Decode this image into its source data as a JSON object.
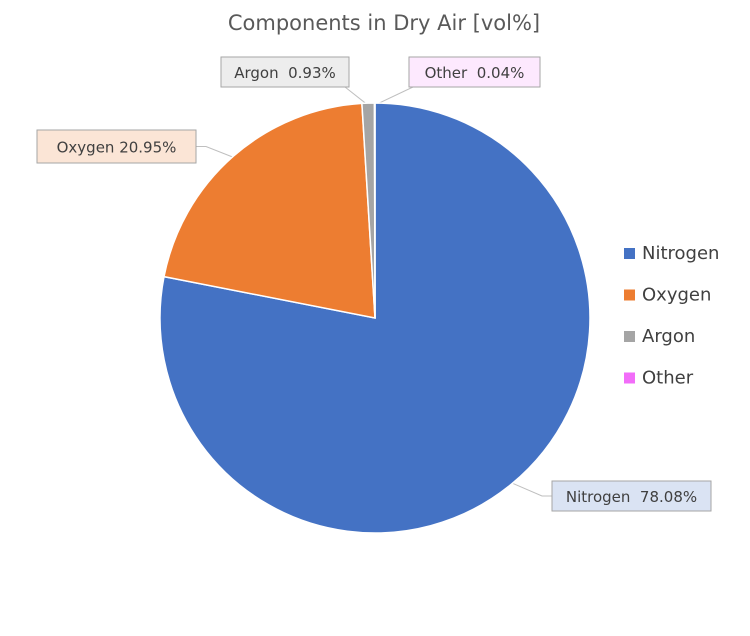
{
  "chart_data": {
    "type": "pie",
    "title": "Components in Dry Air [vol%]",
    "categories": [
      "Nitrogen",
      "Oxygen",
      "Argon",
      "Other"
    ],
    "values": [
      78.08,
      20.95,
      0.93,
      0.04
    ],
    "unit": "%",
    "data_labels": [
      "Nitrogen  78.08%",
      "Oxygen 20.95%",
      "Argon  0.93%",
      "Other  0.04%"
    ],
    "colors": [
      "#4472C4",
      "#ED7D31",
      "#A5A5A5",
      "#F26DF9"
    ],
    "label_fills": [
      "#DAE3F3",
      "#FBE5D6",
      "#EDEDED",
      "#FDE9FE"
    ],
    "legend": {
      "position": "right",
      "entries": [
        "Nitrogen",
        "Oxygen",
        "Argon",
        "Other"
      ]
    }
  }
}
